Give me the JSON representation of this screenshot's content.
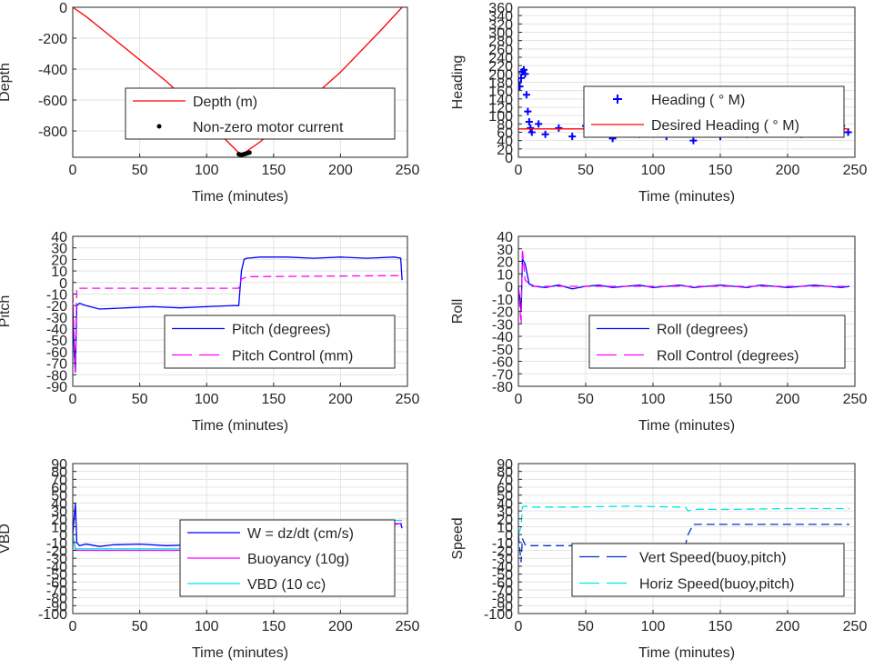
{
  "figure": {
    "background": "#ffffff",
    "grid_color": "#e3e3e3",
    "axis_color": "#262626"
  },
  "chart_data": [
    {
      "id": "depth",
      "type": "line",
      "xlabel": "Time (minutes)",
      "ylabel": "Depth",
      "xlim": [
        0,
        250
      ],
      "ylim": [
        -970,
        0
      ],
      "xticks": [
        0,
        50,
        100,
        150,
        200,
        250
      ],
      "yticks": [
        0,
        -200,
        -400,
        -600,
        -800
      ],
      "grid": true,
      "legend_position": "center",
      "series": [
        {
          "name": "Depth (m)",
          "style": "line",
          "color": "#ff0000",
          "x": [
            0,
            10,
            30,
            50,
            70,
            90,
            110,
            125,
            126,
            140,
            170,
            200,
            230,
            246
          ],
          "y": [
            0,
            -60,
            -200,
            -340,
            -480,
            -640,
            -820,
            -950,
            -955,
            -870,
            -650,
            -420,
            -150,
            0
          ]
        },
        {
          "name": "Non-zero motor current",
          "style": "markers",
          "marker": "dot",
          "color": "#000000",
          "x": [
            124,
            125,
            126,
            127,
            128,
            129,
            130,
            131,
            132
          ],
          "y": [
            -950,
            -953,
            -955,
            -952,
            -950,
            -948,
            -945,
            -942,
            -940
          ]
        }
      ]
    },
    {
      "id": "heading",
      "type": "line",
      "xlabel": "Time (minutes)",
      "ylabel": "Heading",
      "xlim": [
        0,
        250
      ],
      "ylim": [
        0,
        360
      ],
      "xticks": [
        0,
        50,
        100,
        150,
        200,
        250
      ],
      "yticks": [
        0,
        20,
        40,
        60,
        80,
        100,
        120,
        140,
        160,
        180,
        200,
        220,
        240,
        260,
        280,
        300,
        320,
        340,
        360
      ],
      "grid": true,
      "legend_position": "center-right",
      "series": [
        {
          "name": "Heading ( ° M)",
          "style": "markers",
          "marker": "plus",
          "color": "#0000ff",
          "x": [
            0,
            1,
            2,
            3,
            4,
            5,
            6,
            7,
            8,
            9,
            10,
            15,
            20,
            30,
            40,
            50,
            60,
            70,
            80,
            90,
            100,
            110,
            120,
            125,
            130,
            135,
            140,
            150,
            160,
            170,
            180,
            190,
            200,
            210,
            220,
            230,
            240,
            245
          ],
          "y": [
            180,
            170,
            190,
            205,
            210,
            200,
            150,
            110,
            85,
            70,
            60,
            80,
            55,
            70,
            50,
            75,
            60,
            45,
            70,
            55,
            80,
            50,
            60,
            110,
            40,
            70,
            60,
            50,
            75,
            55,
            70,
            60,
            80,
            55,
            70,
            60,
            75,
            60
          ]
        },
        {
          "name": "Desired Heading ( ° M)",
          "style": "line",
          "color": "#ff0000",
          "x": [
            0,
            246
          ],
          "y": [
            68,
            68
          ]
        }
      ]
    },
    {
      "id": "pitch",
      "type": "line",
      "xlabel": "Time (minutes)",
      "ylabel": "Pitch",
      "xlim": [
        0,
        250
      ],
      "ylim": [
        -90,
        40
      ],
      "xticks": [
        0,
        50,
        100,
        150,
        200,
        250
      ],
      "yticks": [
        40,
        30,
        20,
        10,
        0,
        -10,
        -20,
        -30,
        -40,
        -50,
        -60,
        -70,
        -80,
        -90
      ],
      "grid": true,
      "legend_position": "bottom-right",
      "series": [
        {
          "name": "Pitch (degrees)",
          "style": "line",
          "color": "#0000ff",
          "x": [
            0,
            1,
            2,
            3,
            5,
            10,
            20,
            40,
            60,
            80,
            100,
            120,
            124,
            126,
            128,
            130,
            140,
            160,
            180,
            200,
            220,
            240,
            245,
            246
          ],
          "y": [
            -20,
            -60,
            -78,
            -20,
            -18,
            -20,
            -23,
            -22,
            -21,
            -22,
            -21,
            -20,
            -20,
            10,
            20,
            21,
            22,
            22,
            21,
            22,
            21,
            22,
            21,
            2
          ]
        },
        {
          "name": "Pitch Control (mm)",
          "style": "dashed",
          "color": "#ff00ff",
          "x": [
            0,
            2,
            3,
            5,
            60,
            124,
            126,
            130,
            246
          ],
          "y": [
            -10,
            -78,
            -5,
            -5,
            -5,
            -5,
            3,
            5,
            6
          ]
        }
      ]
    },
    {
      "id": "roll",
      "type": "line",
      "xlabel": "Time (minutes)",
      "ylabel": "Roll",
      "xlim": [
        0,
        250
      ],
      "ylim": [
        -80,
        40
      ],
      "xticks": [
        0,
        50,
        100,
        150,
        200,
        250
      ],
      "yticks": [
        40,
        30,
        20,
        10,
        0,
        -10,
        -20,
        -30,
        -40,
        -50,
        -60,
        -70,
        -80
      ],
      "grid": true,
      "legend_position": "bottom-right",
      "series": [
        {
          "name": "Roll (degrees)",
          "style": "line",
          "color": "#0000ff",
          "x": [
            0,
            2,
            3,
            5,
            8,
            12,
            20,
            30,
            40,
            50,
            60,
            70,
            80,
            90,
            100,
            110,
            120,
            130,
            140,
            150,
            160,
            170,
            180,
            190,
            200,
            210,
            220,
            230,
            240,
            246
          ],
          "y": [
            0,
            -20,
            22,
            18,
            2,
            0,
            -1,
            1,
            -2,
            0,
            1,
            -1,
            0,
            1,
            -1,
            0,
            1,
            -1,
            0,
            1,
            0,
            -1,
            1,
            0,
            -1,
            0,
            1,
            0,
            -1,
            0
          ]
        },
        {
          "name": "Roll Control (degrees)",
          "style": "dashed",
          "color": "#ff00ff",
          "x": [
            0,
            2,
            3,
            5,
            10,
            20,
            30,
            40,
            50,
            60,
            70,
            80,
            90,
            100,
            110,
            120,
            130,
            140,
            150,
            160,
            170,
            180,
            190,
            200,
            210,
            220,
            230,
            240,
            246
          ],
          "y": [
            0,
            -30,
            30,
            5,
            0,
            0,
            0,
            0,
            0,
            0,
            0,
            0,
            0,
            0,
            0,
            0,
            0,
            0,
            0,
            0,
            0,
            0,
            0,
            0,
            0,
            0,
            0,
            0,
            0
          ]
        }
      ]
    },
    {
      "id": "vbd",
      "type": "line",
      "xlabel": "Time (minutes)",
      "ylabel": "VBD",
      "xlim": [
        0,
        250
      ],
      "ylim": [
        -100,
        90
      ],
      "xticks": [
        0,
        50,
        100,
        150,
        200,
        250
      ],
      "yticks": [
        90,
        80,
        70,
        60,
        50,
        40,
        30,
        20,
        10,
        0,
        -10,
        -20,
        -30,
        -40,
        -50,
        -60,
        -70,
        -80,
        -90,
        -100
      ],
      "grid": true,
      "legend_position": "bottom-right",
      "series": [
        {
          "name": "W = dz/dt (cm/s)",
          "style": "line",
          "color": "#0000ff",
          "x": [
            0,
            2,
            3,
            5,
            10,
            20,
            30,
            50,
            70,
            90,
            110,
            122,
            124,
            126,
            130,
            140,
            160,
            180,
            200,
            220,
            240,
            245,
            246
          ],
          "y": [
            0,
            40,
            -10,
            -14,
            -12,
            -15,
            -13,
            -12,
            -14,
            -13,
            -12,
            -13,
            -12,
            -5,
            12,
            14,
            13,
            14,
            13,
            14,
            13,
            14,
            8
          ]
        },
        {
          "name": "Buoyancy (10g)",
          "style": "line",
          "color": "#ff00ff",
          "x": [
            0,
            2,
            4,
            10,
            60,
            124,
            126,
            130,
            246
          ],
          "y": [
            0,
            -20,
            -20,
            -20,
            -20,
            -20,
            0,
            14,
            14
          ]
        },
        {
          "name": "VBD (10 cc)",
          "style": "line",
          "color": "#00e5e5",
          "x": [
            0,
            2,
            4,
            10,
            60,
            124,
            126,
            130,
            246
          ],
          "y": [
            0,
            -18,
            -18,
            -18,
            -18,
            -18,
            0,
            18,
            18
          ]
        }
      ]
    },
    {
      "id": "speed",
      "type": "line",
      "xlabel": "Time (minutes)",
      "ylabel": "Speed",
      "xlim": [
        0,
        250
      ],
      "ylim": [
        -100,
        90
      ],
      "xticks": [
        0,
        50,
        100,
        150,
        200,
        250
      ],
      "yticks": [
        90,
        80,
        70,
        60,
        50,
        40,
        30,
        20,
        10,
        0,
        -10,
        -20,
        -30,
        -40,
        -50,
        -60,
        -70,
        -80,
        -90,
        -100
      ],
      "grid": true,
      "legend_position": "bottom-right",
      "series": [
        {
          "name": "Vert Speed(buoy,pitch)",
          "style": "dashed",
          "color": "#0033cc",
          "x": [
            0,
            2,
            3,
            5,
            10,
            30,
            60,
            90,
            120,
            124,
            126,
            130,
            140,
            170,
            200,
            230,
            246
          ],
          "y": [
            0,
            -35,
            -5,
            -13,
            -14,
            -14,
            -14,
            -13,
            -14,
            -14,
            0,
            13,
            13,
            13,
            13,
            13,
            13
          ]
        },
        {
          "name": "Horiz Speed(buoy,pitch)",
          "style": "dashed",
          "color": "#00e5e5",
          "x": [
            0,
            2,
            3,
            5,
            10,
            40,
            80,
            120,
            124,
            126,
            130,
            160,
            200,
            246
          ],
          "y": [
            0,
            10,
            35,
            36,
            35,
            35,
            36,
            35,
            35,
            30,
            32,
            32,
            33,
            33
          ]
        }
      ]
    }
  ]
}
